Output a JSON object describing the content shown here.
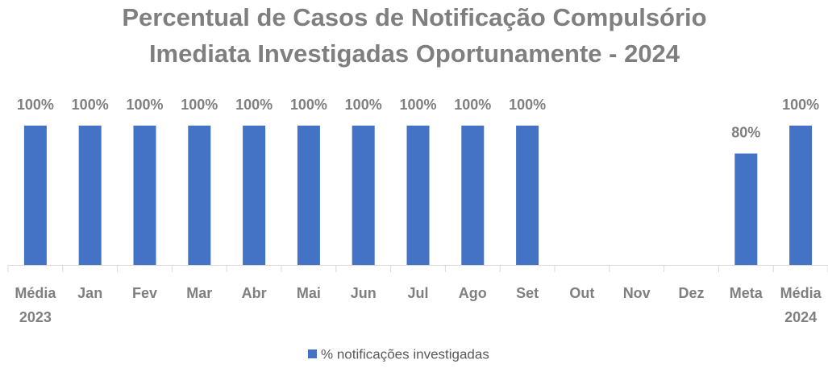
{
  "chart_data": {
    "type": "bar",
    "title": [
      "Percentual de Casos de Notificação Compulsório",
      "Imediata Investigadas Oportunamente - 2024"
    ],
    "categories": [
      "Média 2023",
      "Jan",
      "Fev",
      "Mar",
      "Abr",
      "Mai",
      "Jun",
      "Jul",
      "Ago",
      "Set",
      "Out",
      "Nov",
      "Dez",
      "Meta",
      "Média 2024"
    ],
    "series": [
      {
        "name": "% notificações investigadas",
        "color": "#4472c4",
        "values": [
          100,
          100,
          100,
          100,
          100,
          100,
          100,
          100,
          100,
          100,
          null,
          null,
          null,
          80,
          100
        ],
        "value_labels": [
          "100%",
          "100%",
          "100%",
          "100%",
          "100%",
          "100%",
          "100%",
          "100%",
          "100%",
          "100%",
          null,
          null,
          null,
          "80%",
          "100%"
        ]
      }
    ],
    "ylim": [
      0,
      100
    ],
    "legend": "bottom"
  }
}
